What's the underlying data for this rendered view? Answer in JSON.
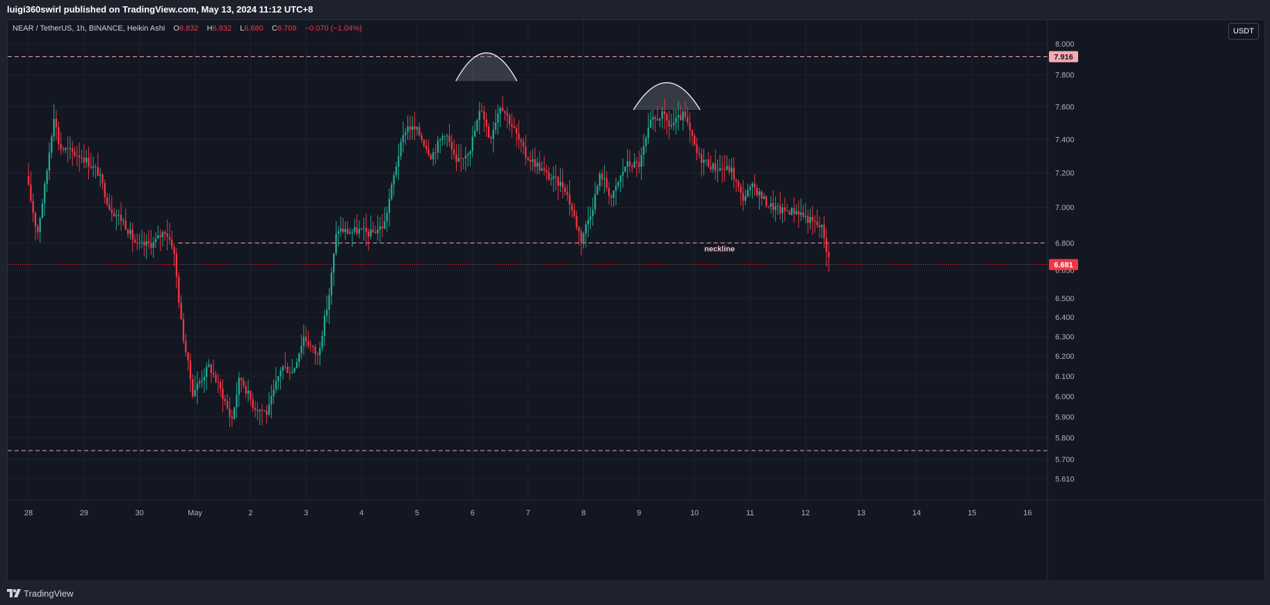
{
  "header": {
    "published_line": "luigi360swirl published on TradingView.com, May 13, 2024 11:12 UTC+8"
  },
  "legend": {
    "symbol": "NEAR / TetherUS, 1h, BINANCE, Heikin Ashi",
    "o_key": "O",
    "o_val": "6.832",
    "h_key": "H",
    "h_val": "6.832",
    "l_key": "L",
    "l_val": "6.680",
    "c_key": "C",
    "c_val": "6.709",
    "change": "−0.070 (−1.04%)"
  },
  "currency_button": "USDT",
  "colors": {
    "up": "#22ab94",
    "down": "#f23645",
    "background": "#131722",
    "grid": "#1f2330",
    "resistance": "#f7a9b4",
    "price_tag": "#f23645"
  },
  "chart_data": {
    "type": "candlestick",
    "symbol": "NEAR / TetherUS",
    "interval": "1h",
    "exchange": "BINANCE",
    "chart_style": "Heikin Ashi",
    "x_ticks": [
      "28",
      "29",
      "30",
      "May",
      "2",
      "3",
      "4",
      "5",
      "6",
      "7",
      "8",
      "9",
      "10",
      "11",
      "12",
      "13",
      "14",
      "15",
      "16"
    ],
    "y_ticks": [
      "8.000",
      "7.800",
      "7.600",
      "7.400",
      "7.200",
      "7.000",
      "6.800",
      "6.650",
      "6.500",
      "6.400",
      "6.300",
      "6.200",
      "6.100",
      "6.000",
      "5.900",
      "5.800",
      "5.700",
      "5.610"
    ],
    "y_tick_values": [
      8.0,
      7.8,
      7.6,
      7.4,
      7.2,
      7.0,
      6.8,
      6.65,
      6.5,
      6.4,
      6.3,
      6.2,
      6.1,
      6.0,
      5.9,
      5.8,
      5.7,
      5.61
    ],
    "y_scale": "log",
    "y_range": [
      5.57,
      8.1
    ],
    "grid": true,
    "price_path_key_points": [
      {
        "day": 0.0,
        "price": 7.18
      },
      {
        "day": 0.2,
        "price": 6.85
      },
      {
        "day": 0.35,
        "price": 7.15
      },
      {
        "day": 0.5,
        "price": 7.55
      },
      {
        "day": 0.6,
        "price": 7.35
      },
      {
        "day": 1.0,
        "price": 7.3
      },
      {
        "day": 1.3,
        "price": 7.2
      },
      {
        "day": 1.5,
        "price": 7.0
      },
      {
        "day": 1.75,
        "price": 6.92
      },
      {
        "day": 2.0,
        "price": 6.78
      },
      {
        "day": 2.3,
        "price": 6.8
      },
      {
        "day": 2.5,
        "price": 6.87
      },
      {
        "day": 2.65,
        "price": 6.78
      },
      {
        "day": 2.8,
        "price": 6.35
      },
      {
        "day": 3.0,
        "price": 6.02
      },
      {
        "day": 3.3,
        "price": 6.15
      },
      {
        "day": 3.55,
        "price": 6.0
      },
      {
        "day": 3.7,
        "price": 5.88
      },
      {
        "day": 3.85,
        "price": 6.1
      },
      {
        "day": 4.1,
        "price": 5.95
      },
      {
        "day": 4.35,
        "price": 5.92
      },
      {
        "day": 4.6,
        "price": 6.15
      },
      {
        "day": 4.8,
        "price": 6.12
      },
      {
        "day": 5.0,
        "price": 6.3
      },
      {
        "day": 5.25,
        "price": 6.2
      },
      {
        "day": 5.45,
        "price": 6.5
      },
      {
        "day": 5.6,
        "price": 6.88
      },
      {
        "day": 5.8,
        "price": 6.86
      },
      {
        "day": 6.0,
        "price": 6.87
      },
      {
        "day": 6.2,
        "price": 6.85
      },
      {
        "day": 6.45,
        "price": 6.9
      },
      {
        "day": 6.7,
        "price": 7.3
      },
      {
        "day": 6.85,
        "price": 7.48
      },
      {
        "day": 7.05,
        "price": 7.45
      },
      {
        "day": 7.3,
        "price": 7.3
      },
      {
        "day": 7.55,
        "price": 7.45
      },
      {
        "day": 7.75,
        "price": 7.25
      },
      {
        "day": 8.0,
        "price": 7.35
      },
      {
        "day": 8.2,
        "price": 7.6
      },
      {
        "day": 8.35,
        "price": 7.4
      },
      {
        "day": 8.55,
        "price": 7.62
      },
      {
        "day": 8.8,
        "price": 7.45
      },
      {
        "day": 9.0,
        "price": 7.3
      },
      {
        "day": 9.2,
        "price": 7.25
      },
      {
        "day": 9.4,
        "price": 7.18
      },
      {
        "day": 9.7,
        "price": 7.12
      },
      {
        "day": 9.9,
        "price": 6.92
      },
      {
        "day": 10.0,
        "price": 6.82
      },
      {
        "day": 10.2,
        "price": 7.0
      },
      {
        "day": 10.35,
        "price": 7.2
      },
      {
        "day": 10.55,
        "price": 7.05
      },
      {
        "day": 10.8,
        "price": 7.25
      },
      {
        "day": 11.05,
        "price": 7.25
      },
      {
        "day": 11.25,
        "price": 7.5
      },
      {
        "day": 11.45,
        "price": 7.55
      },
      {
        "day": 11.6,
        "price": 7.48
      },
      {
        "day": 11.85,
        "price": 7.55
      },
      {
        "day": 11.95,
        "price": 7.45
      },
      {
        "day": 12.1,
        "price": 7.3
      },
      {
        "day": 12.4,
        "price": 7.23
      },
      {
        "day": 12.7,
        "price": 7.22
      },
      {
        "day": 12.9,
        "price": 7.05
      },
      {
        "day": 13.1,
        "price": 7.12
      },
      {
        "day": 13.35,
        "price": 7.02
      },
      {
        "day": 13.6,
        "price": 6.98
      },
      {
        "day": 13.9,
        "price": 6.98
      },
      {
        "day": 14.1,
        "price": 6.93
      },
      {
        "day": 14.35,
        "price": 6.88
      },
      {
        "day": 14.45,
        "price": 6.71
      }
    ],
    "horizontal_lines": [
      {
        "price": 7.916,
        "style": "dashed",
        "label": "7.916"
      },
      {
        "price": 6.8,
        "style": "dashed",
        "label": "neckline"
      },
      {
        "price": 5.74,
        "style": "dashed"
      },
      {
        "price": 6.681,
        "style": "dotted",
        "label": "6.681"
      }
    ],
    "shoulders_arcs": [
      {
        "from_day": 7.7,
        "to_day": 8.8,
        "price_base": 7.76,
        "price_top": 7.94
      },
      {
        "from_day": 10.9,
        "to_day": 12.1,
        "price_base": 7.58,
        "price_top": 7.75
      }
    ],
    "current_price": "6.681",
    "level_tag": "7.916",
    "annotation": "neckline"
  },
  "footer": {
    "brand": "TradingView"
  }
}
